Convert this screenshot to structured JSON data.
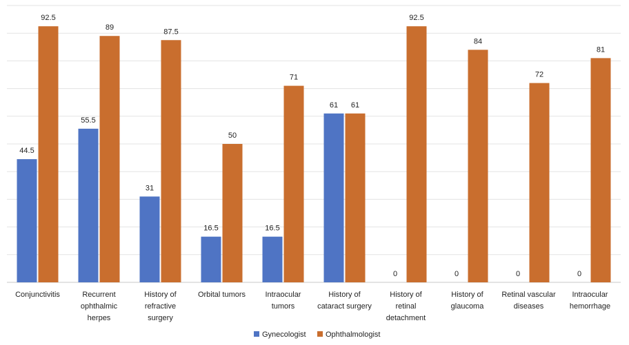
{
  "chart_data": {
    "type": "bar",
    "categories": [
      [
        "Conjunctivitis"
      ],
      [
        "Recurrent",
        "ophthalmic",
        "herpes"
      ],
      [
        "History of",
        "refractive",
        "surgery"
      ],
      [
        "Orbital tumors"
      ],
      [
        "Intraocular",
        "tumors"
      ],
      [
        "History of",
        "cataract surgery"
      ],
      [
        "History of",
        "retinal",
        "detachment"
      ],
      [
        "History of",
        "glaucoma"
      ],
      [
        "Retinal vascular",
        "diseases"
      ],
      [
        "Intraocular",
        "hemorrhage"
      ]
    ],
    "series": [
      {
        "name": "Gynecologist",
        "color": "#4f74c4",
        "values": [
          44.5,
          55.5,
          31,
          16.5,
          16.5,
          61,
          0,
          0,
          0,
          0
        ],
        "labels": [
          "44.5",
          "55.5",
          "31",
          "16.5",
          "16.5",
          "61",
          "0",
          "0",
          "0",
          "0"
        ]
      },
      {
        "name": "Ophthalmologist",
        "color": "#c96e2e",
        "values": [
          92.5,
          89,
          87.5,
          50,
          71,
          61,
          92.5,
          84,
          72,
          81
        ],
        "labels": [
          "92.5",
          "89",
          "87.5",
          "50",
          "71",
          "61",
          "92.5",
          "84",
          "72",
          "81"
        ]
      }
    ],
    "ylim": [
      0,
      100
    ],
    "gridlines": true,
    "legend_position": "bottom"
  }
}
